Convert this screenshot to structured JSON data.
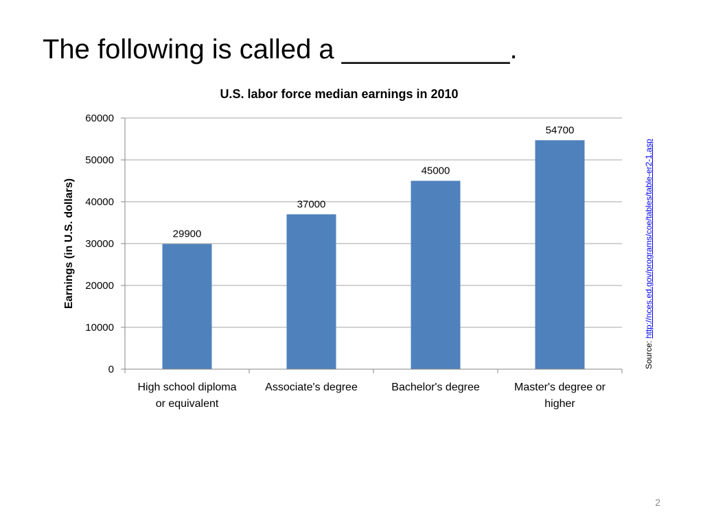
{
  "slide": {
    "title": "The following is called a ___________.",
    "page_number": "2"
  },
  "source": {
    "label": "Source: ",
    "link_text": "http://nces.ed.gov/programs/coe/tables/table-er2-1.asp"
  },
  "colors": {
    "bar": "#4f81bd",
    "gridline": "#a6a6a6",
    "axis": "#868686"
  },
  "chart_data": {
    "type": "bar",
    "title": "U.S. labor force median earnings in 2010",
    "xlabel": "",
    "ylabel": "Earnings (in U.S. dollars)",
    "categories": [
      [
        "High school diploma",
        "or equivalent"
      ],
      [
        "Associate's degree"
      ],
      [
        "Bachelor's degree"
      ],
      [
        "Master's degree or",
        "higher"
      ]
    ],
    "values": [
      29900,
      37000,
      45000,
      54700
    ],
    "data_labels": [
      "29900",
      "37000",
      "45000",
      "54700"
    ],
    "ylim": [
      0,
      60000
    ],
    "yticks": [
      0,
      10000,
      20000,
      30000,
      40000,
      50000,
      60000
    ],
    "ytick_labels": [
      "0",
      "10000",
      "20000",
      "30000",
      "40000",
      "50000",
      "60000"
    ],
    "grid": true,
    "legend": "none"
  }
}
